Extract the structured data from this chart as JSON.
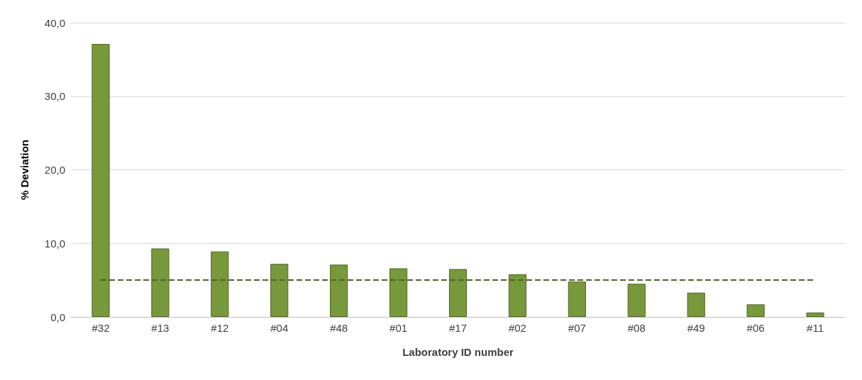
{
  "chart_data": {
    "type": "bar",
    "xlabel": "Laboratory ID number",
    "ylabel": "% Deviation",
    "categories": [
      "#32",
      "#13",
      "#12",
      "#04",
      "#48",
      "#01",
      "#17",
      "#02",
      "#07",
      "#08",
      "#49",
      "#06",
      "#11"
    ],
    "values": [
      37.1,
      9.3,
      8.9,
      7.2,
      7.1,
      6.6,
      6.5,
      5.8,
      4.8,
      4.5,
      3.3,
      1.7,
      0.6
    ],
    "color": "#77993b",
    "ylim": [
      0,
      40
    ],
    "yticks": [
      {
        "value": 0,
        "label": "0,0"
      },
      {
        "value": 10,
        "label": "10,0"
      },
      {
        "value": 20,
        "label": "20,0"
      },
      {
        "value": 30,
        "label": "30,0"
      },
      {
        "value": 40,
        "label": "40,0"
      }
    ],
    "grid": "y",
    "ref_lines": [
      {
        "axis": "y",
        "value": 5,
        "color": "#4f6228",
        "line_style": "dashed"
      }
    ]
  }
}
